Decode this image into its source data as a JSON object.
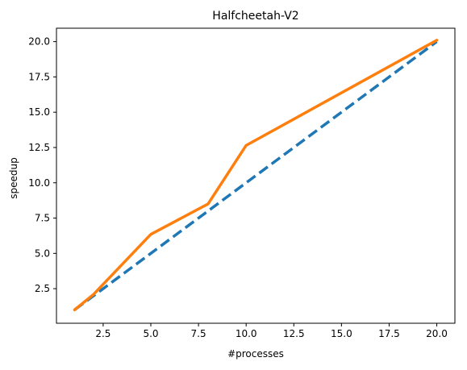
{
  "chart_data": {
    "type": "line",
    "title": "Halfcheetah-V2",
    "xlabel": "#processes",
    "ylabel": "speedup",
    "xlim": [
      0.05,
      20.95
    ],
    "ylim": [
      0.05,
      20.95
    ],
    "xticks": [
      2.5,
      5.0,
      7.5,
      10.0,
      12.5,
      15.0,
      17.5,
      20.0
    ],
    "xtick_labels": [
      "2.5",
      "5.0",
      "7.5",
      "10.0",
      "12.5",
      "15.0",
      "17.5",
      "20.0"
    ],
    "yticks": [
      2.5,
      5.0,
      7.5,
      10.0,
      12.5,
      15.0,
      17.5,
      20.0
    ],
    "ytick_labels": [
      "2.5",
      "5.0",
      "7.5",
      "10.0",
      "12.5",
      "15.0",
      "17.5",
      "20.0"
    ],
    "grid": false,
    "legend": false,
    "series": [
      {
        "x": [
          1,
          2,
          5,
          8,
          10,
          20
        ],
        "y": [
          1,
          2,
          5,
          8,
          10,
          20
        ],
        "color": "#1f77b4",
        "dash": "dashed"
      },
      {
        "x": [
          1,
          2,
          5,
          8,
          10,
          20
        ],
        "y": [
          1.0,
          2.1,
          6.35,
          8.5,
          12.65,
          20.1
        ],
        "color": "#ff7f0e",
        "dash": "solid"
      }
    ]
  }
}
